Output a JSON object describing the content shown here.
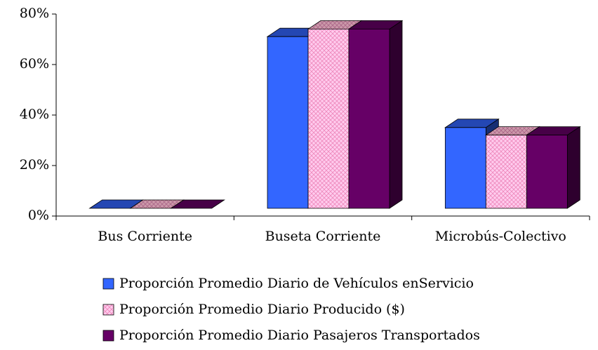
{
  "chart_data": {
    "type": "bar3d",
    "categories": [
      "Bus Corriente",
      "Buseta Corriente",
      "Microbús-Colectivo"
    ],
    "series": [
      {
        "name": "Proporción Promedio Diario de Vehículos enServicio",
        "color": "#3366ff",
        "values": [
          0,
          68,
          32
        ]
      },
      {
        "name": "Proporción Promedio Diario Producido ($)",
        "color": "#ffccee",
        "values": [
          0,
          71,
          29
        ]
      },
      {
        "name": "Proporción Promedio Diario Pasajeros Transportados",
        "color": "#660066",
        "values": [
          0,
          71,
          29
        ]
      }
    ],
    "ylim": [
      0,
      80
    ],
    "yticks": [
      {
        "value": 0,
        "label": "0%"
      },
      {
        "value": 20,
        "label": "20%"
      },
      {
        "value": 40,
        "label": "40%"
      },
      {
        "value": 60,
        "label": "60%"
      },
      {
        "value": 80,
        "label": "80%"
      }
    ],
    "legend": "bottom"
  }
}
